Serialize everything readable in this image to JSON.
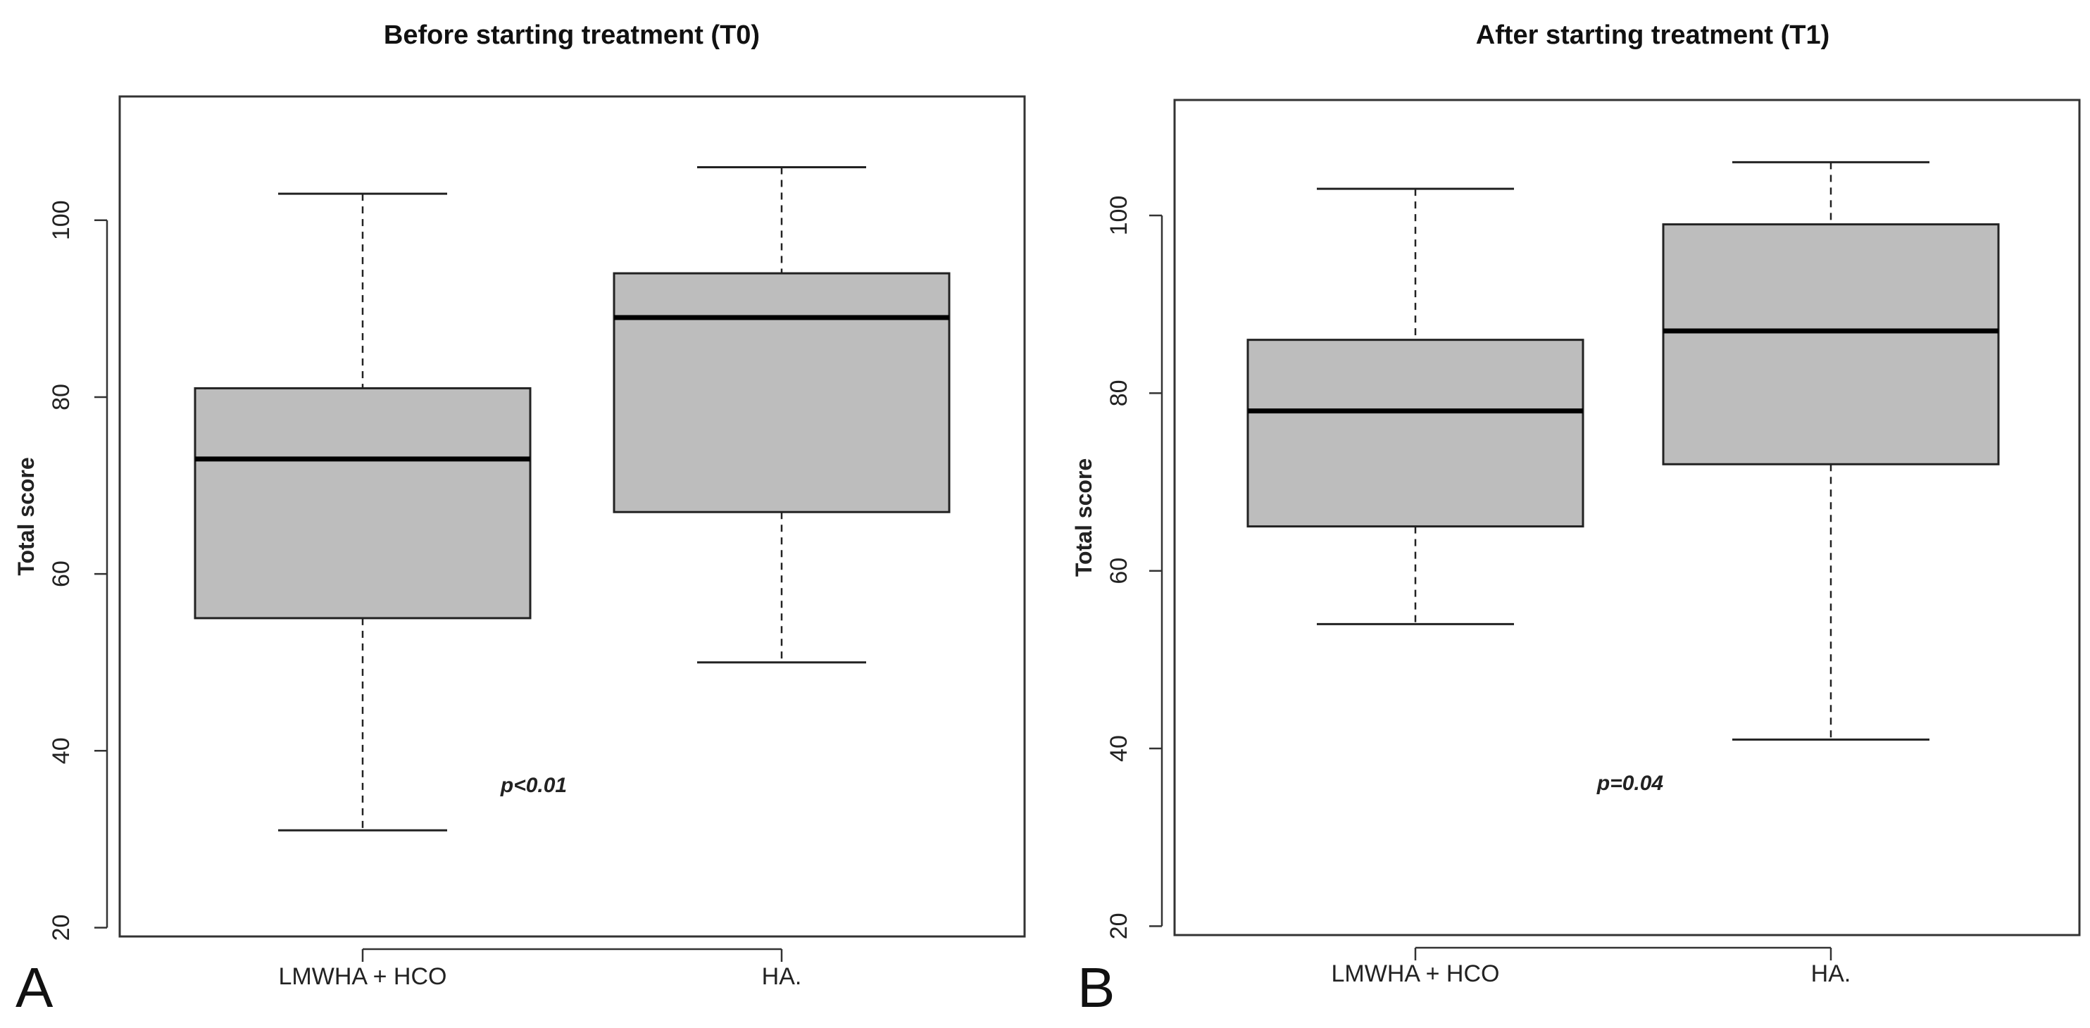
{
  "chart_data": [
    {
      "type": "box",
      "panel_label": "A",
      "title": "Before starting treatment (T0)",
      "xlabel": "",
      "ylabel": "Total score",
      "ylim": [
        19,
        114
      ],
      "yticks": [
        20,
        40,
        60,
        80,
        100
      ],
      "annotation": "p<0.01",
      "grid": false,
      "categories": [
        "LMWHA + HCO",
        "HA."
      ],
      "boxes": [
        {
          "category": "LMWHA + HCO",
          "min": 31,
          "q1": 55,
          "median": 73,
          "q3": 81,
          "max": 103
        },
        {
          "category": "HA.",
          "min": 50,
          "q1": 67,
          "median": 89,
          "q3": 94,
          "max": 106
        }
      ],
      "colors": {
        "box_fill": "#bdbdbd",
        "median": "#000000"
      }
    },
    {
      "type": "box",
      "panel_label": "B",
      "title": "After starting treatment (T1)",
      "xlabel": "",
      "ylabel": "Total score",
      "ylim": [
        19,
        113
      ],
      "yticks": [
        20,
        40,
        60,
        80,
        100
      ],
      "annotation": "p=0.04",
      "grid": false,
      "categories": [
        "LMWHA + HCO",
        "HA."
      ],
      "boxes": [
        {
          "category": "LMWHA + HCO",
          "min": 54,
          "q1": 65,
          "median": 78,
          "q3": 86,
          "max": 103
        },
        {
          "category": "HA.",
          "min": 41,
          "q1": 72,
          "median": 87,
          "q3": 99,
          "max": 106
        }
      ],
      "colors": {
        "box_fill": "#bdbdbd",
        "median": "#000000"
      }
    }
  ]
}
